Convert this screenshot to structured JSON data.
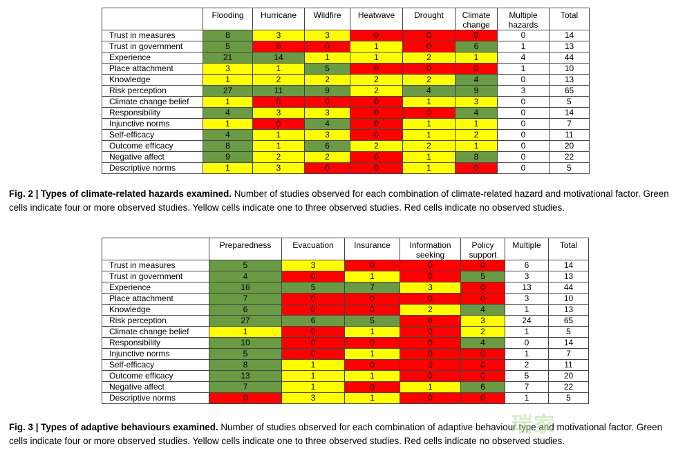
{
  "fig2": {
    "headers": [
      "Flooding",
      "Hurricane",
      "Wildfire",
      "Heatwave",
      "Drought",
      "Climate change",
      "Multiple hazards",
      "Total"
    ],
    "rows": [
      {
        "label": "Trust in measures",
        "values": [
          8,
          3,
          3,
          0,
          0,
          0,
          0,
          14
        ]
      },
      {
        "label": "Trust in government",
        "values": [
          5,
          0,
          0,
          1,
          0,
          6,
          1,
          13
        ]
      },
      {
        "label": "Experience",
        "values": [
          21,
          14,
          1,
          1,
          2,
          1,
          4,
          44
        ]
      },
      {
        "label": "Place attachment",
        "values": [
          3,
          1,
          5,
          0,
          0,
          0,
          1,
          10
        ]
      },
      {
        "label": "Knowledge",
        "values": [
          1,
          2,
          2,
          2,
          2,
          4,
          0,
          13
        ]
      },
      {
        "label": "Risk perception",
        "values": [
          27,
          11,
          9,
          2,
          4,
          9,
          3,
          65
        ]
      },
      {
        "label": "Climate change belief",
        "values": [
          1,
          0,
          0,
          0,
          1,
          3,
          0,
          5
        ]
      },
      {
        "label": "Responsibility",
        "values": [
          4,
          3,
          3,
          0,
          0,
          4,
          0,
          14
        ]
      },
      {
        "label": "Injunctive norms",
        "values": [
          1,
          0,
          4,
          0,
          1,
          1,
          0,
          7
        ]
      },
      {
        "label": "Self-efficacy",
        "values": [
          4,
          1,
          3,
          0,
          1,
          2,
          0,
          11
        ]
      },
      {
        "label": "Outcome efficacy",
        "values": [
          8,
          1,
          6,
          2,
          2,
          1,
          0,
          20
        ]
      },
      {
        "label": "Negative affect",
        "values": [
          9,
          2,
          2,
          0,
          1,
          8,
          0,
          22
        ]
      },
      {
        "label": "Descriptive norms",
        "values": [
          1,
          3,
          0,
          0,
          1,
          0,
          0,
          5
        ]
      }
    ],
    "caption_bold": "Fig. 2 | Types of climate-related hazards examined.",
    "caption_text": " Number of studies observed for each combination of climate-related hazard and motivational factor. Green cells indicate four or more observed studies. Yellow cells indicate one to three observed studies. Red cells indicate no observed studies."
  },
  "fig3": {
    "headers": [
      "Preparedness",
      "Evacuation",
      "Insurance",
      "Information seeking",
      "Policy support",
      "Multiple",
      "Total"
    ],
    "rows": [
      {
        "label": "Trust in measures",
        "values": [
          5,
          3,
          0,
          0,
          0,
          6,
          14
        ]
      },
      {
        "label": "Trust in government",
        "values": [
          4,
          0,
          1,
          0,
          5,
          3,
          13
        ]
      },
      {
        "label": "Experience",
        "values": [
          16,
          5,
          7,
          3,
          0,
          13,
          44
        ]
      },
      {
        "label": "Place attachment",
        "values": [
          7,
          0,
          0,
          0,
          0,
          3,
          10
        ]
      },
      {
        "label": "Knowledge",
        "values": [
          6,
          0,
          0,
          2,
          4,
          1,
          13
        ]
      },
      {
        "label": "Risk perception",
        "values": [
          27,
          6,
          5,
          0,
          3,
          24,
          65
        ]
      },
      {
        "label": "Climate change belief",
        "values": [
          1,
          0,
          1,
          0,
          2,
          1,
          5
        ]
      },
      {
        "label": "Responsibility",
        "values": [
          10,
          0,
          0,
          0,
          4,
          0,
          14
        ]
      },
      {
        "label": "Injunctive norms",
        "values": [
          5,
          0,
          1,
          0,
          0,
          1,
          7
        ]
      },
      {
        "label": "Self-efficacy",
        "values": [
          8,
          1,
          0,
          0,
          0,
          2,
          11
        ]
      },
      {
        "label": "Outcome efficacy",
        "values": [
          13,
          1,
          1,
          0,
          0,
          5,
          20
        ]
      },
      {
        "label": "Negative affect",
        "values": [
          7,
          1,
          0,
          1,
          6,
          7,
          22
        ]
      },
      {
        "label": "Descriptive norms",
        "values": [
          0,
          3,
          1,
          0,
          0,
          1,
          5
        ]
      }
    ],
    "caption_bold": "Fig. 3 | Types of adaptive behaviours examined.",
    "caption_text": " Number of studies observed for each combination of adaptive behaviour type and motivational factor. Green cells indicate four or more observed studies. Yellow cells indicate one to three observed studies. Red cells indicate no observed studies."
  },
  "colors": {
    "green": "#6a9a44",
    "yellow": "#ffff00",
    "red": "#ff0000"
  },
  "watermark": "瑞家"
}
